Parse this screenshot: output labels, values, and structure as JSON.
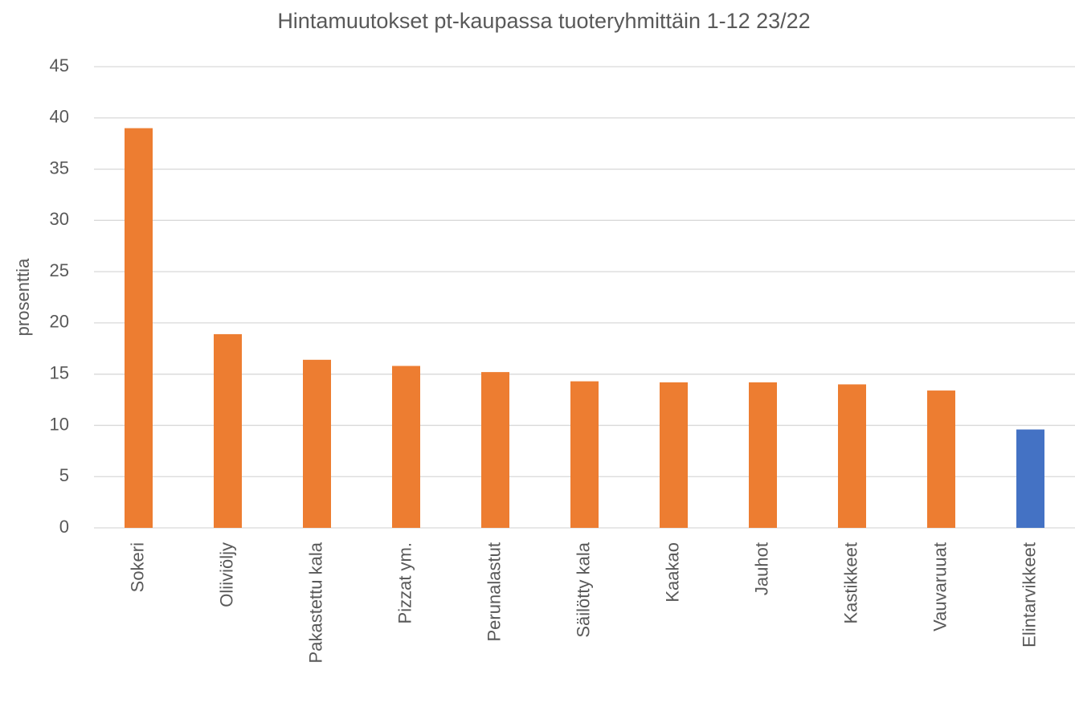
{
  "chart_data": {
    "type": "bar",
    "title": "Hintamuutokset pt-kaupassa tuoteryhmittäin 1-12 23/22",
    "y_label": "prosenttia",
    "categories": [
      "Sokeri",
      "Oliiviöljy",
      "Pakastettu kala",
      "Pizzat ym.",
      "Perunalastut",
      "Säilötty kala",
      "Kaakao",
      "Jauhot",
      "Kastikkeet",
      "Vauvaruuat",
      "Elintarvikkeet"
    ],
    "values": [
      39.0,
      18.9,
      16.4,
      15.8,
      15.2,
      14.3,
      14.2,
      14.2,
      14.0,
      13.4,
      9.6
    ],
    "colors": [
      "#ed7d31",
      "#ed7d31",
      "#ed7d31",
      "#ed7d31",
      "#ed7d31",
      "#ed7d31",
      "#ed7d31",
      "#ed7d31",
      "#ed7d31",
      "#ed7d31",
      "#4472c4"
    ],
    "ylim": [
      0,
      45
    ],
    "yticks": [
      0,
      5,
      10,
      15,
      20,
      25,
      30,
      35,
      40,
      45
    ],
    "grid": true
  }
}
